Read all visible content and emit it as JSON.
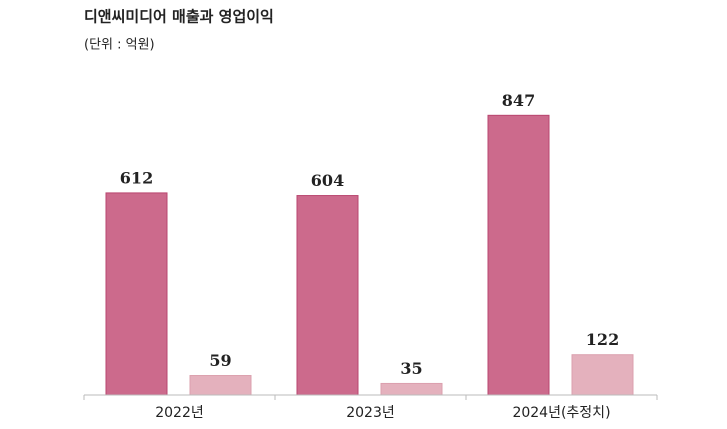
{
  "chart_data": {
    "type": "bar",
    "title": "디앤씨미디어 매출과 영업이익",
    "subtitle": "(단위 : 억원)",
    "categories": [
      "2022년",
      "2023년",
      "2024년(추정치)"
    ],
    "series": [
      {
        "color": "#cc6a8c",
        "values": [
          612,
          604,
          847
        ]
      },
      {
        "color": "#e4b1bd",
        "values": [
          59,
          35,
          122
        ]
      }
    ],
    "ylim": [
      0,
      960
    ]
  }
}
